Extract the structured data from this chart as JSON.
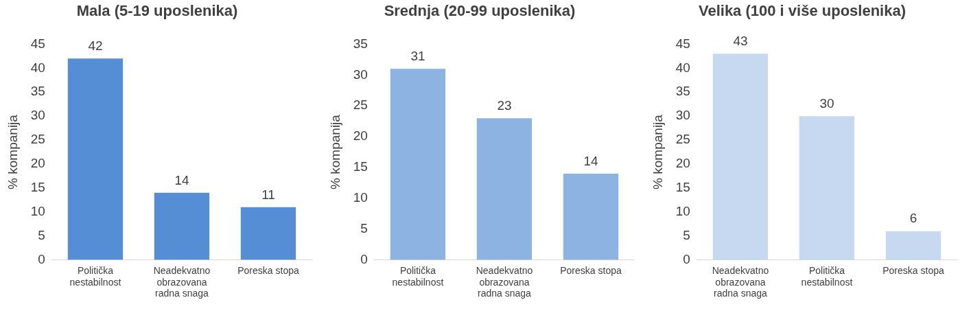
{
  "chart_data": [
    {
      "type": "bar",
      "title": "Mala (5-19 uposlenika)",
      "ylabel": "% kompanija",
      "categories": [
        "Politička nestabilnost",
        "Neadekvatno obrazovana radna snaga",
        "Poreska stopa"
      ],
      "values": [
        42,
        14,
        11
      ],
      "color": "#558ed5",
      "ylim": [
        0,
        45
      ],
      "yticks": [
        0,
        5,
        10,
        15,
        20,
        25,
        30,
        35,
        40,
        45
      ],
      "data_labels": true,
      "grid": false,
      "legend": false
    },
    {
      "type": "bar",
      "title": "Srednja (20-99 uposlenika)",
      "ylabel": "% kompanija",
      "categories": [
        "Politička nestabilnost",
        "Neadekvatno obrazovana radna snaga",
        "Poreska stopa"
      ],
      "values": [
        31,
        23,
        14
      ],
      "color": "#8db3e2",
      "ylim": [
        0,
        35
      ],
      "yticks": [
        0,
        5,
        10,
        15,
        20,
        25,
        30,
        35
      ],
      "data_labels": true,
      "grid": false,
      "legend": false
    },
    {
      "type": "bar",
      "title": "Velika (100 i više uposlenika)",
      "ylabel": "% kompanija",
      "categories": [
        "Neadekvatno obrazovana radna snaga",
        "Politička nestabilnost",
        "Poreska stopa"
      ],
      "values": [
        43,
        30,
        6
      ],
      "color": "#c6d9f1",
      "ylim": [
        0,
        45
      ],
      "yticks": [
        0,
        5,
        10,
        15,
        20,
        25,
        30,
        35,
        40,
        45
      ],
      "data_labels": true,
      "grid": false,
      "legend": false
    }
  ]
}
